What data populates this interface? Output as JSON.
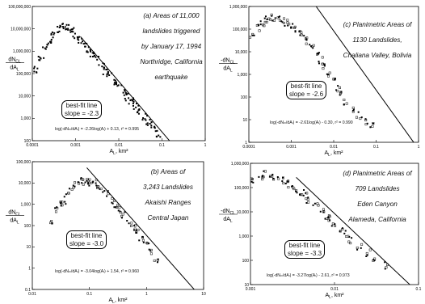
{
  "chart_data": [
    {
      "type": "scatter",
      "title": "(a) Areas of 11,000 landslides triggered by January 17, 1994 Northridge, California earthquake",
      "title_lines": [
        "(a) Areas of 11,000",
        "landslides triggered",
        "by January 17, 1994",
        "Northridge, California",
        "earthquake"
      ],
      "xlabel": "A_L, km²",
      "xlabel_text": "A",
      "xlabel_sub": "L",
      "xlabel_unit": ", km²",
      "ylabel_num": "dN",
      "ylabel_num_sub": "CL",
      "ylabel_den": "dA",
      "ylabel_den_sub": "L",
      "xscale": "log",
      "yscale": "log",
      "xlim": [
        0.0001,
        1
      ],
      "ylim": [
        100,
        100000000
      ],
      "xticks": [
        "0.0001",
        "0.001",
        "0.01",
        "0.1",
        "1"
      ],
      "yticks": [
        "100",
        "1,000",
        "10,000",
        "100,000",
        "1,000,000",
        "10,000,000",
        "100,000,000"
      ],
      "callout": [
        "best-fit line",
        "slope = -2.3"
      ],
      "equation": "log(dN_CL/dA_L) = -2.26log(A_L) + 0.13, r² = 0.995",
      "equation_text": "log(-dNₙₗ/dAₗ) = -2.26log(Aₗ) + 0.13, r² = 0.995",
      "fit": {
        "slope": -2.26,
        "intercept": 0.13
      },
      "x": [
        0.00012,
        0.00016,
        0.0002,
        0.00025,
        0.0003,
        0.0004,
        0.0005,
        0.0006,
        0.0008,
        0.001,
        0.0013,
        0.0016,
        0.002,
        0.0025,
        0.003,
        0.004,
        0.005,
        0.006,
        0.008,
        0.01,
        0.013,
        0.016,
        0.02,
        0.025,
        0.03,
        0.04,
        0.05,
        0.06,
        0.08
      ],
      "y": [
        150000,
        500000,
        1400000,
        3000000,
        5500000,
        9000000,
        12000000,
        11000000,
        8000000,
        5500000,
        3200000,
        2000000,
        1200000,
        700000,
        450000,
        220000,
        130000,
        85000,
        45000,
        28000,
        15000,
        9000,
        5500,
        3200,
        2200,
        1100,
        600,
        400,
        200
      ]
    },
    {
      "type": "scatter",
      "title": "(c) Planimetric Areas of 1130 Landslides, Chaliana Valley, Bolivia",
      "title_lines": [
        "(c) Planimetric Areas of",
        "1130 Landslides,",
        "Chaliana Valley, Bolivia"
      ],
      "xlabel": "A_L, km²",
      "xlabel_text": "A",
      "xlabel_sub": "L",
      "xlabel_unit": ", km²",
      "ylabel_num": "-dN",
      "ylabel_num_sub": "CL",
      "ylabel_den": "dA",
      "ylabel_den_sub": "L",
      "xscale": "log",
      "yscale": "log",
      "xlim": [
        0.0001,
        1
      ],
      "ylim": [
        1,
        1000000
      ],
      "xticks": [
        "0.0001",
        "0.001",
        "0.01",
        "0.1",
        "1"
      ],
      "yticks": [
        "1",
        "10",
        "100",
        "1,000",
        "10,000",
        "100,000",
        "1,000,000"
      ],
      "callout": [
        "best-fit line",
        "slope = -2.6"
      ],
      "equation": "log(-dN_CL/dA_L) = -2.61log(A_L) - 0.30, r² = 0.990",
      "equation_text": "log(-dNₙₗ/dAₗ) = -2.61log(Aₗ) - 0.30, r² = 0.990",
      "fit": {
        "slope": -2.61,
        "intercept": -0.3
      },
      "x": [
        0.00012,
        0.00016,
        0.0002,
        0.00025,
        0.0003,
        0.0004,
        0.0005,
        0.0006,
        0.0008,
        0.001,
        0.0013,
        0.0016,
        0.002,
        0.0025,
        0.003,
        0.004,
        0.005,
        0.006,
        0.008,
        0.01,
        0.013,
        0.016,
        0.02,
        0.03,
        0.04,
        0.06,
        0.08
      ],
      "y": [
        60000,
        110000,
        200000,
        260000,
        300000,
        320000,
        280000,
        250000,
        200000,
        150000,
        100000,
        70000,
        45000,
        28000,
        16000,
        7000,
        4000,
        2500,
        1100,
        500,
        220,
        120,
        60,
        25,
        15,
        8,
        6
      ]
    },
    {
      "type": "scatter",
      "title": "(b) Areas of 3,243 Landslides Akaishi Ranges Central Japan",
      "title_lines": [
        "(b) Areas of",
        "3,243 Landslides",
        "Akaishi Ranges",
        "Central Japan"
      ],
      "xlabel": "A_L, km²",
      "xlabel_text": "A",
      "xlabel_sub": "L",
      "xlabel_unit": ", km²",
      "ylabel_num": "dN",
      "ylabel_num_sub": "CL",
      "ylabel_den": "dA",
      "ylabel_den_sub": "L",
      "xscale": "log",
      "yscale": "log",
      "xlim": [
        0.01,
        10
      ],
      "ylim": [
        0.1,
        100000
      ],
      "xticks": [
        "0.01",
        "0.1",
        "1",
        "10"
      ],
      "yticks": [
        "0.1",
        "1",
        "10",
        "100",
        "1,000",
        "10,000",
        "100,000"
      ],
      "callout": [
        "best-fit line",
        "slope = -3.0"
      ],
      "equation": "log(-dN_CL/dA_L) = -3.04log(A_L) + 1.54, r² = 0.960",
      "equation_text": "log(-dNₙₗ/dAₗ) = -3.04log(Aₗ) + 1.54, r² = 0.960",
      "fit": {
        "slope": -3.04,
        "intercept": 1.54
      },
      "x": [
        0.02,
        0.025,
        0.03,
        0.035,
        0.04,
        0.05,
        0.06,
        0.07,
        0.08,
        0.09,
        0.1,
        0.12,
        0.14,
        0.16,
        0.2,
        0.25,
        0.3,
        0.35,
        0.4,
        0.5,
        0.6,
        0.7,
        0.8,
        1.0,
        1.2,
        1.5
      ],
      "y": [
        150,
        600,
        1200,
        1500,
        2500,
        5500,
        9000,
        12000,
        14000,
        13000,
        11000,
        9500,
        7000,
        5000,
        3000,
        1500,
        900,
        500,
        300,
        140,
        80,
        45,
        25,
        12,
        6,
        2
      ]
    },
    {
      "type": "scatter",
      "title": "(d) Planimetric Areas of 709 Landslides Eden Canyon Alameda, California",
      "title_lines": [
        "(d) Planimetric Areas of",
        "709 Landslides",
        "Eden Canyon",
        "Alameda, California"
      ],
      "xlabel": "A_L, km²",
      "xlabel_text": "A",
      "xlabel_sub": "L",
      "xlabel_unit": ", km²",
      "ylabel_num": "-dN",
      "ylabel_num_sub": "CL",
      "ylabel_den": "dA",
      "ylabel_den_sub": "L",
      "xscale": "log",
      "yscale": "log",
      "xlim": [
        0.001,
        0.1
      ],
      "ylim": [
        10,
        1000000
      ],
      "xticks": [
        "0.001",
        "0.01",
        "0.1"
      ],
      "yticks": [
        "10",
        "100",
        "1,000",
        "10,000",
        "100,000",
        "1,000,000"
      ],
      "callout": [
        "best-fit line",
        "slope = -3.3"
      ],
      "equation": "log(-dN_CL/dA_L) = -3.27log(A_L) - 2.61, r² = 0.973",
      "equation_text": "log(-dNₙₗ/dAₗ) = -3.27log(Aₗ) - 2.61, r² = 0.973",
      "fit": {
        "slope": -3.27,
        "intercept": -2.61
      },
      "x": [
        0.0011,
        0.0013,
        0.0015,
        0.0017,
        0.002,
        0.0023,
        0.0026,
        0.003,
        0.0035,
        0.004,
        0.0045,
        0.005,
        0.006,
        0.007,
        0.008,
        0.009,
        0.01,
        0.012,
        0.014,
        0.016,
        0.02,
        0.025,
        0.03,
        0.04
      ],
      "y": [
        200000,
        300000,
        350000,
        300000,
        250000,
        200000,
        150000,
        110000,
        80000,
        60000,
        45000,
        30000,
        18000,
        12000,
        7000,
        5000,
        3500,
        2000,
        1200,
        700,
        350,
        200,
        120,
        60
      ]
    }
  ]
}
